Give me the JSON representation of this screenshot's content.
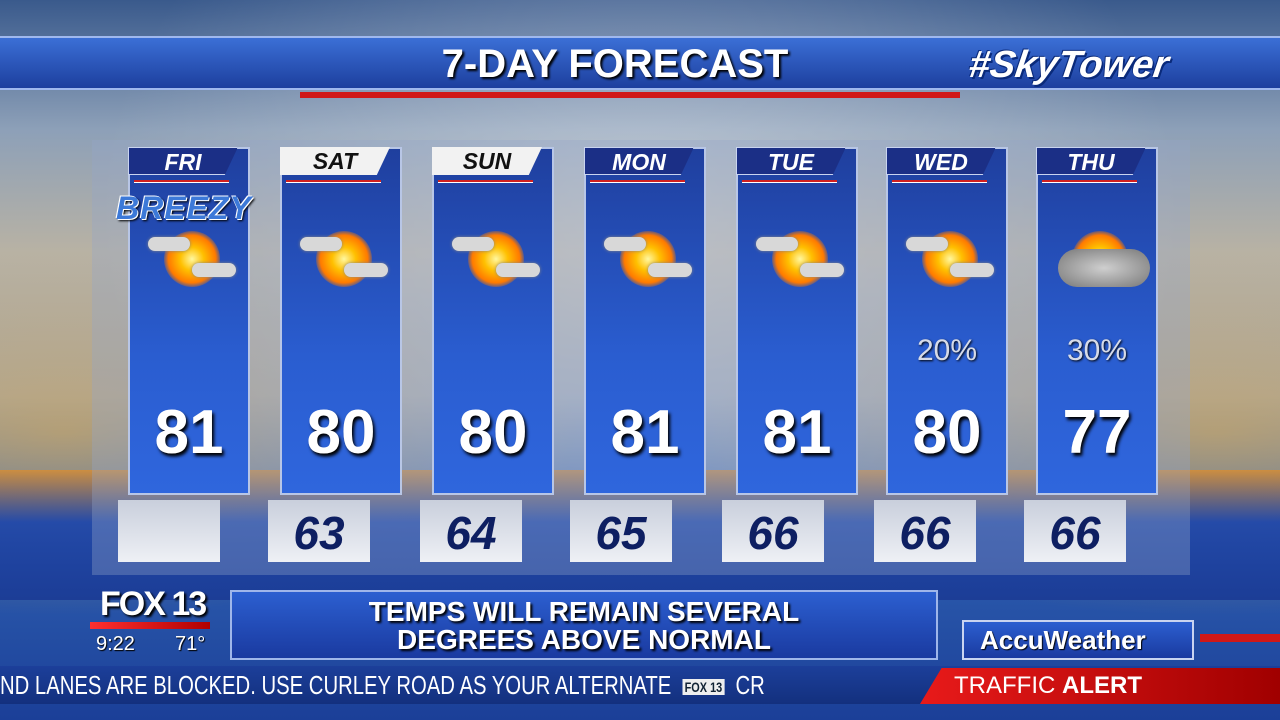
{
  "header": {
    "title": "7-DAY FORECAST",
    "brand": "#SkyTower"
  },
  "days": [
    {
      "day": "FRI",
      "style": "dark",
      "note": "BREEZY",
      "icon": "partly-sunny-icon",
      "precip": "",
      "high": "81",
      "low": ""
    },
    {
      "day": "SAT",
      "style": "light",
      "icon": "partly-sunny-icon",
      "precip": "",
      "high": "80",
      "low": "63"
    },
    {
      "day": "SUN",
      "style": "light",
      "icon": "partly-sunny-icon",
      "precip": "",
      "high": "80",
      "low": "64"
    },
    {
      "day": "MON",
      "style": "dark",
      "icon": "partly-sunny-icon",
      "precip": "",
      "high": "81",
      "low": "65"
    },
    {
      "day": "TUE",
      "style": "dark",
      "icon": "partly-sunny-icon",
      "precip": "",
      "high": "81",
      "low": "66"
    },
    {
      "day": "WED",
      "style": "dark",
      "icon": "partly-sunny-icon",
      "precip": "20%",
      "high": "80",
      "low": "66"
    },
    {
      "day": "THU",
      "style": "dark",
      "icon": "mostly-cloudy-icon",
      "precip": "30%",
      "high": "77",
      "low": "66"
    }
  ],
  "station": {
    "logo": "FOX 13",
    "time": "9:22",
    "temp": "71°"
  },
  "headline": {
    "line1": "TEMPS WILL REMAIN SEVERAL",
    "line2": "DEGREES ABOVE NORMAL"
  },
  "sponsor": "AccuWeather",
  "ticker": {
    "text": "ND LANES ARE BLOCKED. USE CURLEY ROAD AS YOUR ALTERNATE",
    "logo": "FOX 13",
    "next": "CR",
    "alert_label": "TRAFFIC",
    "alert_bold": "ALERT"
  },
  "colors": {
    "panel": "#2a5dd0",
    "alert": "#e81a1a",
    "title_bar": "#1d3f9e"
  }
}
